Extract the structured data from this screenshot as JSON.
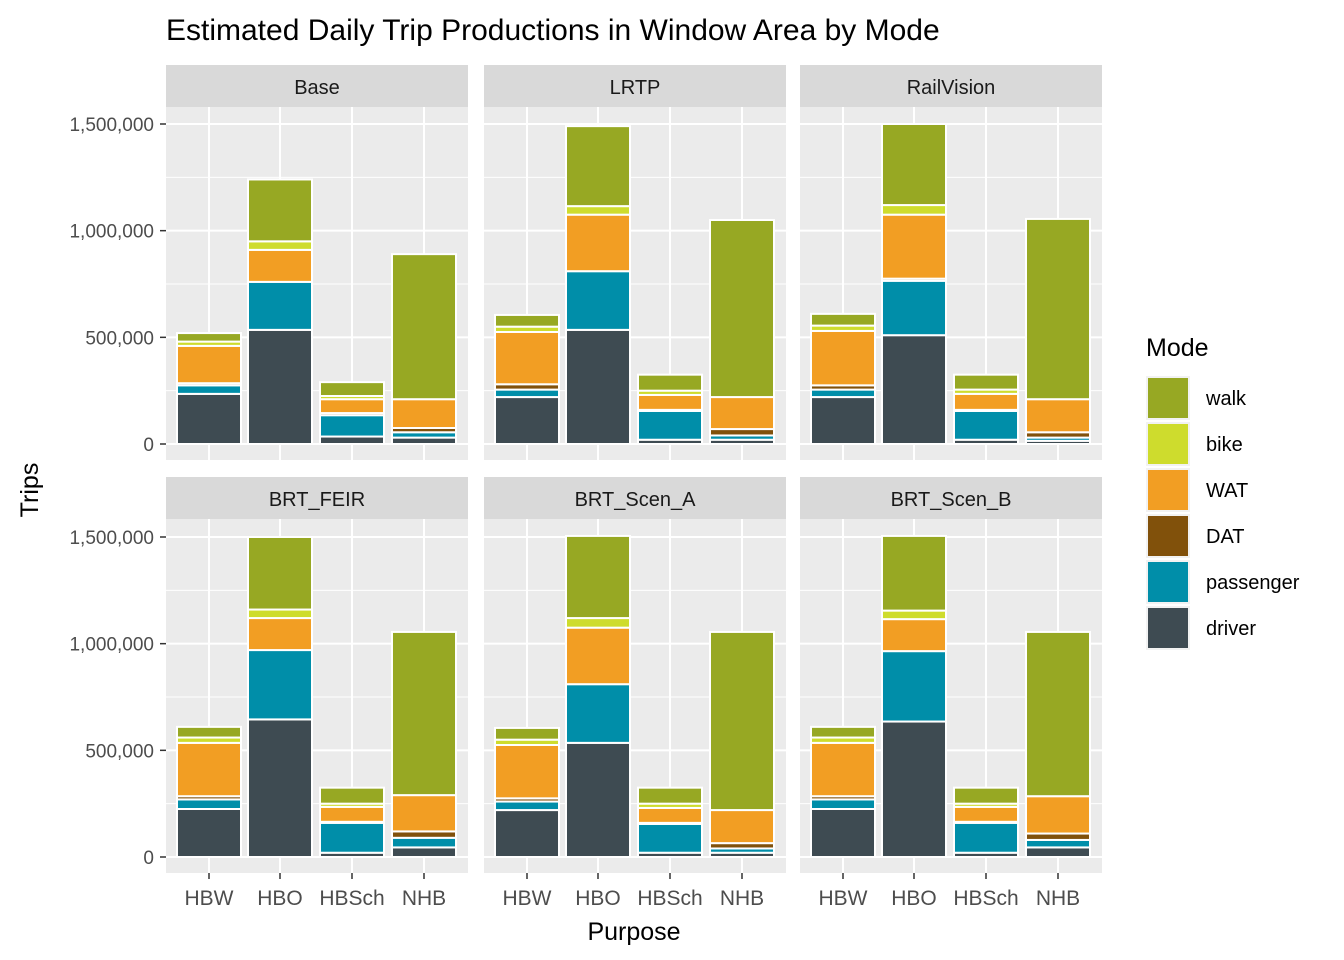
{
  "chart_data": {
    "type": "bar",
    "stacked": true,
    "title": "Estimated Daily Trip Productions in Window Area by Mode",
    "xlabel": "Purpose",
    "ylabel": "Trips",
    "categories": [
      "HBW",
      "HBO",
      "HBSch",
      "NHB"
    ],
    "ylim": [
      0,
      1500000
    ],
    "yticks": [
      0,
      500000,
      1000000,
      1500000
    ],
    "ytick_labels": [
      "0",
      "500,000",
      "1,000,000",
      "1,500,000"
    ],
    "grid": true,
    "legend": {
      "title": "Mode",
      "position": "right",
      "entries": [
        {
          "name": "walk",
          "color": "#97A823"
        },
        {
          "name": "bike",
          "color": "#CEDC2D"
        },
        {
          "name": "WAT",
          "color": "#F29E23"
        },
        {
          "name": "DAT",
          "color": "#81510B"
        },
        {
          "name": "passenger",
          "color": "#008EA9"
        },
        {
          "name": "driver",
          "color": "#3E4B52"
        }
      ]
    },
    "stack_order": [
      "driver",
      "passenger",
      "DAT",
      "WAT",
      "bike",
      "walk"
    ],
    "panels": [
      {
        "name": "Base",
        "bars": [
          {
            "driver": 235000,
            "passenger": 40000,
            "DAT": 10000,
            "WAT": 175000,
            "bike": 20000,
            "walk": 40000
          },
          {
            "driver": 535000,
            "passenger": 225000,
            "DAT": 0,
            "WAT": 150000,
            "bike": 40000,
            "walk": 290000
          },
          {
            "driver": 35000,
            "passenger": 100000,
            "DAT": 10000,
            "WAT": 65000,
            "bike": 15000,
            "walk": 65000
          },
          {
            "driver": 30000,
            "passenger": 25000,
            "DAT": 20000,
            "WAT": 135000,
            "bike": 0,
            "walk": 680000
          }
        ]
      },
      {
        "name": "LRTP",
        "bars": [
          {
            "driver": 220000,
            "passenger": 35000,
            "DAT": 25000,
            "WAT": 245000,
            "bike": 25000,
            "walk": 55000
          },
          {
            "driver": 535000,
            "passenger": 275000,
            "DAT": 0,
            "WAT": 265000,
            "bike": 40000,
            "walk": 375000
          },
          {
            "driver": 20000,
            "passenger": 135000,
            "DAT": 5000,
            "WAT": 70000,
            "bike": 20000,
            "walk": 75000
          },
          {
            "driver": 20000,
            "passenger": 20000,
            "DAT": 30000,
            "WAT": 150000,
            "bike": 0,
            "walk": 830000
          }
        ]
      },
      {
        "name": "RailVision",
        "bars": [
          {
            "driver": 220000,
            "passenger": 35000,
            "DAT": 20000,
            "WAT": 255000,
            "bike": 25000,
            "walk": 55000
          },
          {
            "driver": 510000,
            "passenger": 255000,
            "DAT": 10000,
            "WAT": 300000,
            "bike": 45000,
            "walk": 380000
          },
          {
            "driver": 20000,
            "passenger": 135000,
            "DAT": 5000,
            "WAT": 75000,
            "bike": 20000,
            "walk": 70000
          },
          {
            "driver": 15000,
            "passenger": 15000,
            "DAT": 25000,
            "WAT": 155000,
            "bike": 0,
            "walk": 845000
          }
        ]
      },
      {
        "name": "BRT_FEIR",
        "bars": [
          {
            "driver": 225000,
            "passenger": 45000,
            "DAT": 15000,
            "WAT": 250000,
            "bike": 25000,
            "walk": 50000
          },
          {
            "driver": 645000,
            "passenger": 325000,
            "DAT": 0,
            "WAT": 150000,
            "bike": 40000,
            "walk": 340000
          },
          {
            "driver": 20000,
            "passenger": 140000,
            "DAT": 5000,
            "WAT": 70000,
            "bike": 15000,
            "walk": 75000
          },
          {
            "driver": 45000,
            "passenger": 45000,
            "DAT": 30000,
            "WAT": 170000,
            "bike": 0,
            "walk": 765000
          }
        ]
      },
      {
        "name": "BRT_Scen_A",
        "bars": [
          {
            "driver": 220000,
            "passenger": 40000,
            "DAT": 15000,
            "WAT": 250000,
            "bike": 25000,
            "walk": 55000
          },
          {
            "driver": 535000,
            "passenger": 275000,
            "DAT": 0,
            "WAT": 265000,
            "bike": 45000,
            "walk": 385000
          },
          {
            "driver": 20000,
            "passenger": 135000,
            "DAT": 5000,
            "WAT": 70000,
            "bike": 20000,
            "walk": 75000
          },
          {
            "driver": 20000,
            "passenger": 20000,
            "DAT": 25000,
            "WAT": 155000,
            "bike": 0,
            "walk": 835000
          }
        ]
      },
      {
        "name": "BRT_Scen_B",
        "bars": [
          {
            "driver": 225000,
            "passenger": 45000,
            "DAT": 15000,
            "WAT": 250000,
            "bike": 25000,
            "walk": 50000
          },
          {
            "driver": 635000,
            "passenger": 330000,
            "DAT": 0,
            "WAT": 150000,
            "bike": 40000,
            "walk": 350000
          },
          {
            "driver": 20000,
            "passenger": 140000,
            "DAT": 5000,
            "WAT": 70000,
            "bike": 15000,
            "walk": 75000
          },
          {
            "driver": 45000,
            "passenger": 35000,
            "DAT": 30000,
            "WAT": 175000,
            "bike": 0,
            "walk": 770000
          }
        ]
      }
    ]
  }
}
